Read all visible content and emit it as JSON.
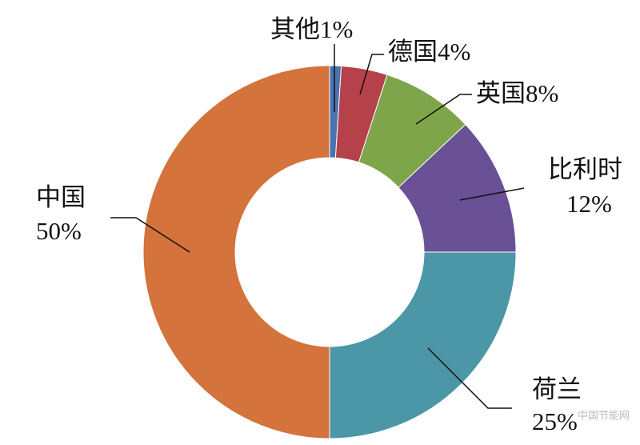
{
  "chart_data": {
    "type": "donut",
    "categories": [
      "其他",
      "德国",
      "英国",
      "比利时",
      "荷兰",
      "中国"
    ],
    "values": [
      1,
      4,
      8,
      12,
      25,
      50
    ],
    "value_labels": [
      "1%",
      "4%",
      "8%",
      "12%",
      "25%",
      "50%"
    ],
    "colors": [
      "#4a72b0",
      "#b5414a",
      "#7ea54a",
      "#6a5196",
      "#4b97a8",
      "#d4733b"
    ]
  },
  "watermark": "中国节能网"
}
